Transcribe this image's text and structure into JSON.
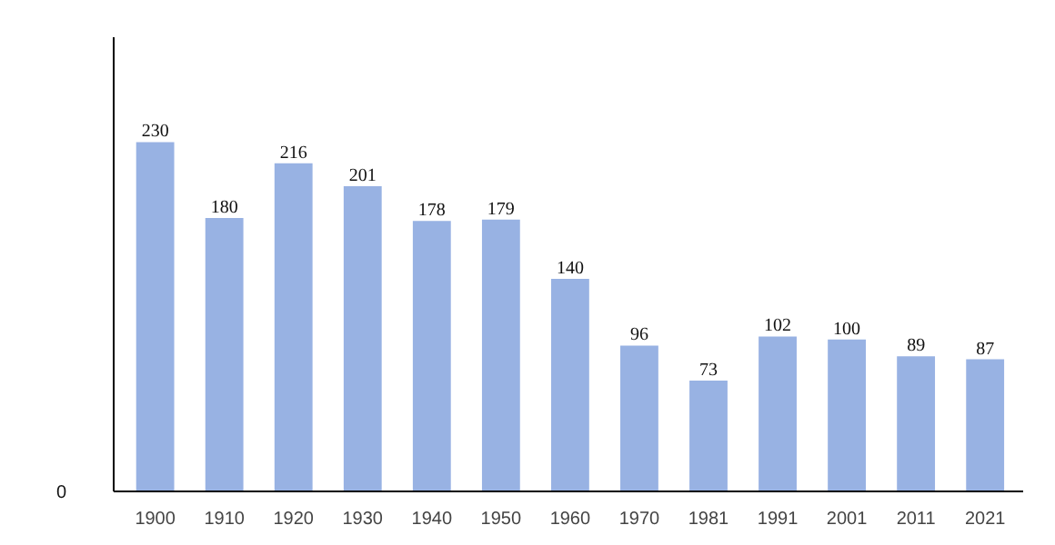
{
  "chart_data": {
    "type": "bar",
    "categories": [
      "1900",
      "1910",
      "1920",
      "1930",
      "1940",
      "1950",
      "1960",
      "1970",
      "1981",
      "1991",
      "2001",
      "2011",
      "2021"
    ],
    "values": [
      230,
      180,
      216,
      201,
      178,
      179,
      140,
      96,
      73,
      102,
      100,
      89,
      87
    ],
    "color": "#98b2e3",
    "data_labels": true,
    "annotations": [
      "0"
    ]
  }
}
